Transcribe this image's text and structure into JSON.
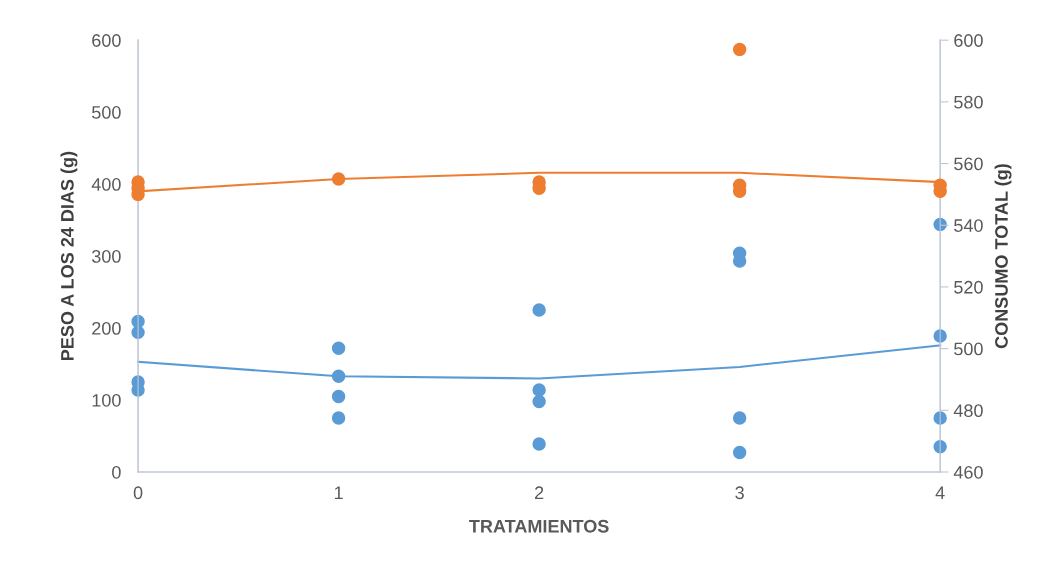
{
  "chart_data": {
    "type": "scatter",
    "xlabel": "TRATAMIENTOS",
    "ylabel": "PESO A LOS 24 DIAS (g)",
    "y2label": "CONSUMO TOTAL (g)",
    "xlim": [
      0,
      4
    ],
    "xticks": [
      0,
      1,
      2,
      3,
      4
    ],
    "ylim": [
      0,
      600
    ],
    "yticks": [
      0,
      100,
      200,
      300,
      400,
      500,
      600
    ],
    "y2lim": [
      460,
      600
    ],
    "y2ticks": [
      460,
      480,
      500,
      520,
      540,
      560,
      580,
      600
    ],
    "grid": false,
    "legend": false,
    "series": [
      {
        "marker": "circle",
        "color": "#5b9bd5",
        "x": [
          0,
          0,
          0,
          0,
          1,
          1,
          1,
          1,
          2,
          2,
          2,
          2,
          3,
          3,
          3,
          3,
          4,
          4,
          4,
          4
        ],
        "values": [
          209,
          194,
          125,
          114,
          172,
          133,
          105,
          75,
          225,
          114,
          98,
          39,
          304,
          293,
          75,
          27,
          344,
          189,
          75,
          35
        ]
      },
      {
        "type": "line",
        "marker": "none",
        "color": "#5b9bd5",
        "x": [
          0,
          1,
          2,
          3,
          4
        ],
        "values": [
          153,
          133,
          130,
          146,
          176
        ]
      },
      {
        "marker": "circle",
        "axis": "y2",
        "color": "#ed7d31",
        "x": [
          0,
          0,
          0,
          1,
          2,
          2,
          3,
          3,
          3,
          4,
          4
        ],
        "values": [
          554,
          552,
          550,
          555,
          554,
          552,
          597,
          553,
          551,
          553,
          551
        ]
      },
      {
        "type": "line",
        "marker": "none",
        "axis": "y2",
        "color": "#ed7d31",
        "x": [
          0,
          1,
          2,
          3,
          4
        ],
        "values": [
          551,
          555,
          557,
          557,
          554
        ]
      }
    ]
  }
}
